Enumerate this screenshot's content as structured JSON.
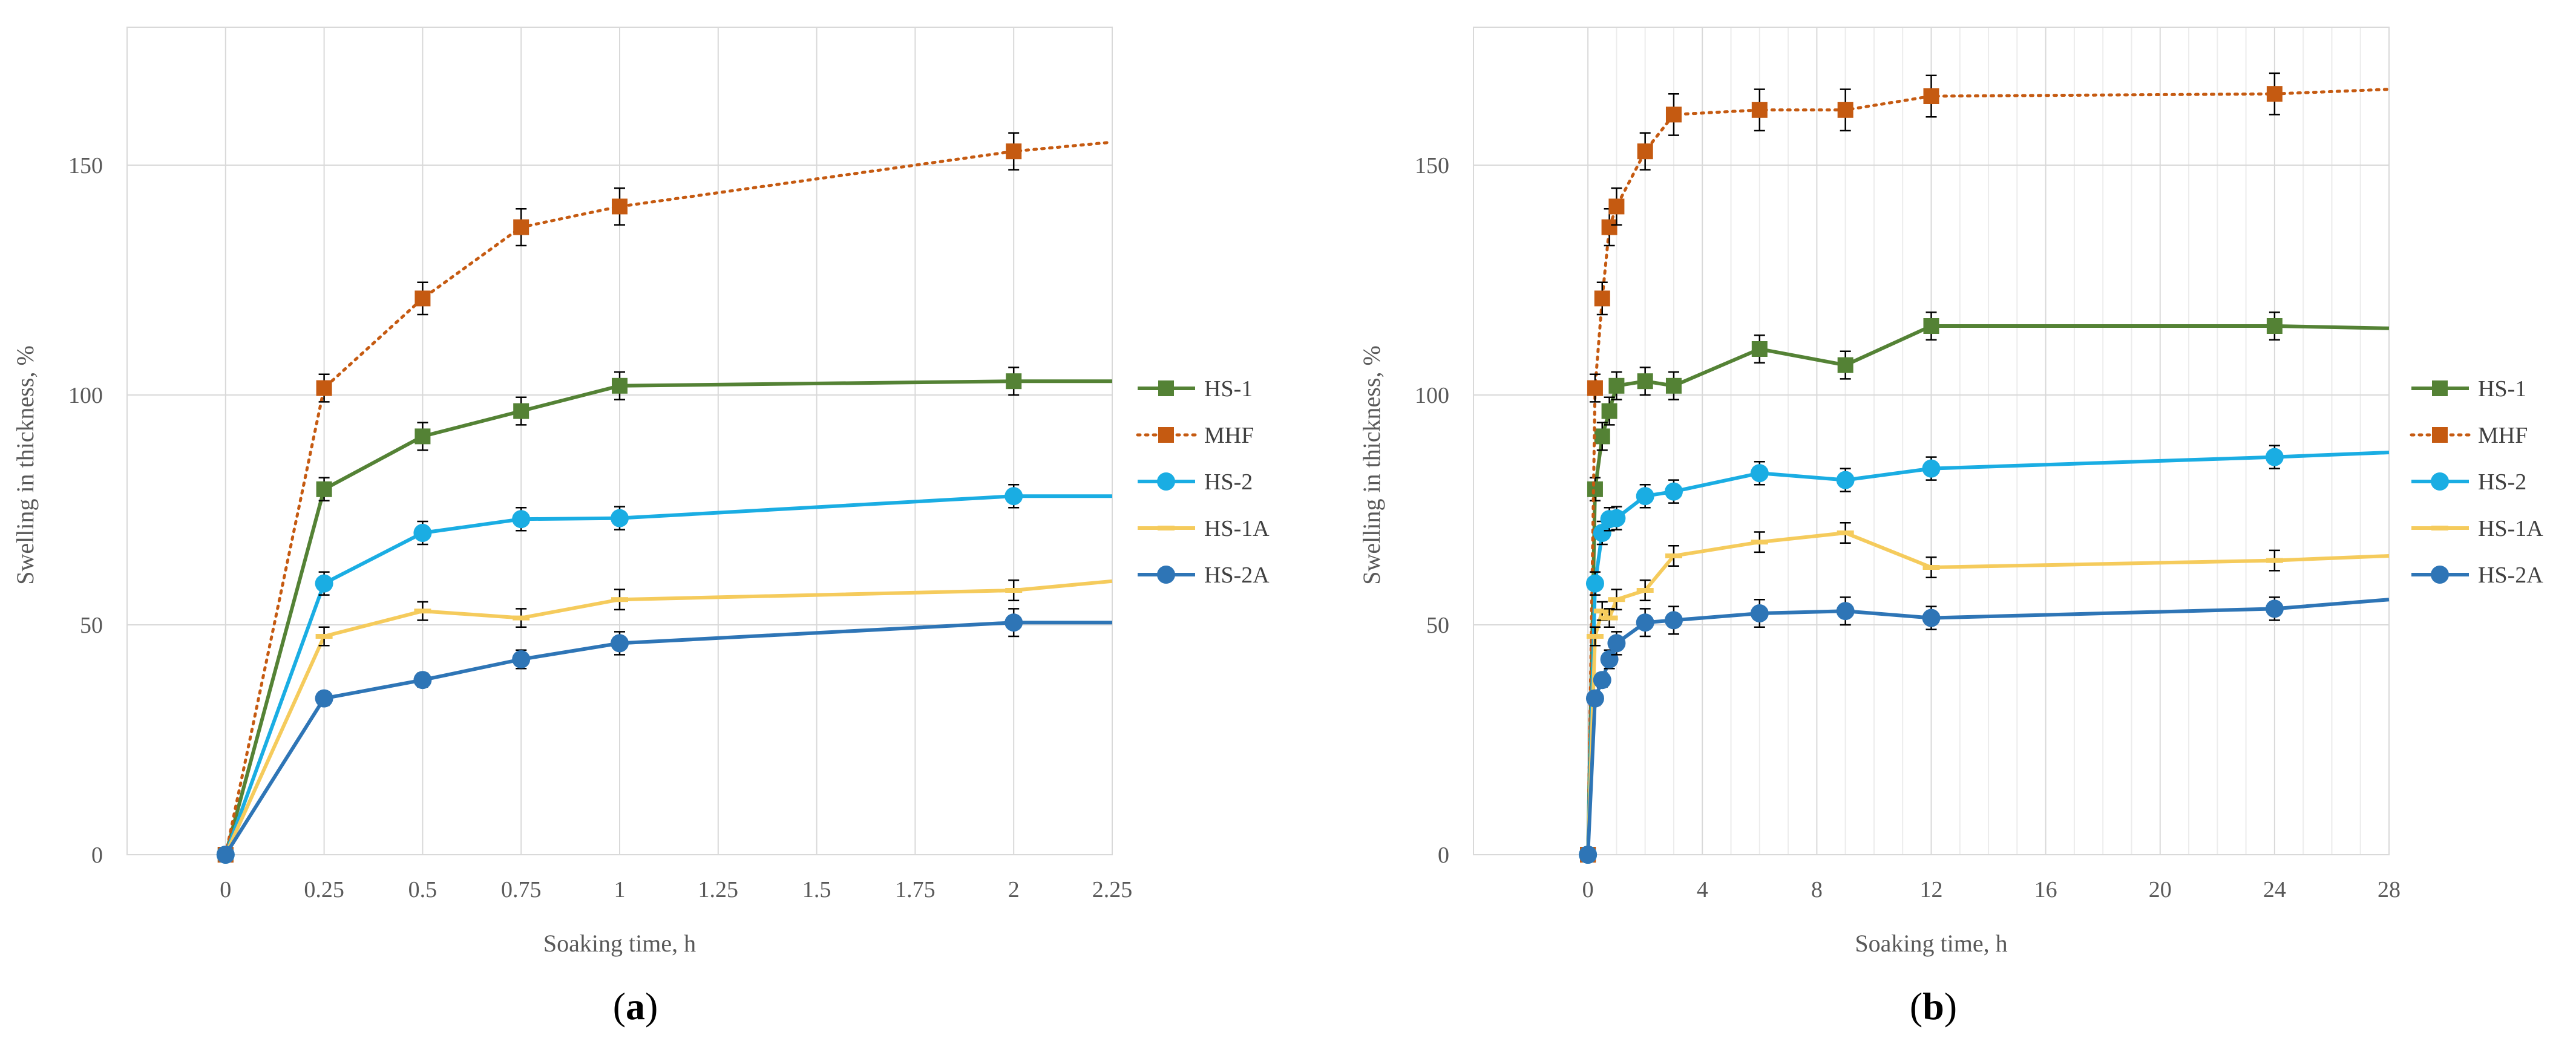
{
  "chart_data": [
    {
      "type": "line",
      "panel_label_open": "(",
      "panel_label_letter": "a",
      "panel_label_close": ")",
      "xlabel": "Soaking time, h",
      "ylabel": "Swelling in thickness, %",
      "x_ticks": [
        "0",
        "0.25",
        "0.5",
        "0.75",
        "1",
        "1.25",
        "1.5",
        "1.75",
        "2",
        "2.25"
      ],
      "x_tick_values": [
        0,
        0.25,
        0.5,
        0.75,
        1,
        1.25,
        1.5,
        1.75,
        2,
        2.25
      ],
      "y_ticks": [
        "0",
        "50",
        "100",
        "150"
      ],
      "y_tick_values": [
        0,
        50,
        100,
        150
      ],
      "xlim": [
        -0.25,
        2.25
      ],
      "ylim": [
        0,
        180
      ],
      "minor_x_grid": false,
      "legend_position": "right",
      "series": [
        {
          "name": "HS-1",
          "color": "#548235",
          "marker": "square",
          "style": "solid",
          "x": [
            0,
            0.25,
            0.5,
            0.75,
            1,
            2,
            2.25
          ],
          "y": [
            0,
            79.5,
            91,
            96.5,
            102,
            103,
            103
          ],
          "err": [
            0,
            2.5,
            3,
            3,
            3,
            3,
            0
          ]
        },
        {
          "name": "MHF",
          "color": "#C55A11",
          "marker": "square",
          "style": "dotted",
          "x": [
            0,
            0.25,
            0.5,
            0.75,
            1,
            2,
            2.25
          ],
          "y": [
            0,
            101.5,
            121,
            136.5,
            141,
            153,
            155
          ],
          "err": [
            0,
            3,
            3.5,
            4,
            4,
            4,
            0
          ]
        },
        {
          "name": "HS-2",
          "color": "#1AADE3",
          "marker": "circle",
          "style": "solid",
          "x": [
            0,
            0.25,
            0.5,
            0.75,
            1,
            2,
            2.25
          ],
          "y": [
            0,
            59,
            70,
            73,
            73.2,
            78,
            78
          ],
          "err": [
            0,
            2.5,
            2.5,
            2.5,
            2.5,
            2.5,
            0
          ]
        },
        {
          "name": "HS-1A",
          "color": "#F5CB5C",
          "marker": "dash",
          "style": "solid",
          "x": [
            0,
            0.25,
            0.5,
            0.75,
            1,
            2,
            2.25
          ],
          "y": [
            0,
            47.5,
            53,
            51.5,
            55.5,
            57.5,
            59.5
          ],
          "err": [
            0,
            2,
            2,
            2,
            2.2,
            2.2,
            0
          ]
        },
        {
          "name": "HS-2A",
          "color": "#2E75B6",
          "marker": "circle",
          "style": "solid",
          "x": [
            0,
            0.25,
            0.5,
            0.75,
            1,
            2,
            2.25
          ],
          "y": [
            0,
            34,
            38,
            42.5,
            46,
            50.5,
            50.5
          ],
          "err": [
            0,
            1.5,
            1.5,
            2,
            2.5,
            3,
            0
          ]
        }
      ]
    },
    {
      "type": "line",
      "panel_label_open": "(",
      "panel_label_letter": "b",
      "panel_label_close": ")",
      "xlabel": "Soaking time, h",
      "ylabel": "Swelling in thickness, %",
      "x_ticks": [
        "0",
        "4",
        "8",
        "12",
        "16",
        "20",
        "24",
        "28"
      ],
      "x_tick_values": [
        0,
        4,
        8,
        12,
        16,
        20,
        24,
        28
      ],
      "y_ticks": [
        "0",
        "50",
        "100",
        "150"
      ],
      "y_tick_values": [
        0,
        50,
        100,
        150
      ],
      "xlim": [
        -4,
        28
      ],
      "ylim": [
        0,
        180
      ],
      "minor_x_grid": true,
      "legend_position": "right",
      "series": [
        {
          "name": "HS-1",
          "color": "#548235",
          "marker": "square",
          "style": "solid",
          "x": [
            0,
            0.25,
            0.5,
            0.75,
            1,
            2,
            3,
            6,
            9,
            12,
            24,
            28
          ],
          "y": [
            0,
            79.5,
            91,
            96.5,
            102,
            103,
            102,
            110,
            106.5,
            115,
            115,
            114.5
          ],
          "err": [
            0,
            2.5,
            3,
            3,
            3,
            3,
            3,
            3,
            3,
            3,
            3,
            0
          ]
        },
        {
          "name": "MHF",
          "color": "#C55A11",
          "marker": "square",
          "style": "dotted",
          "x": [
            0,
            0.25,
            0.5,
            0.75,
            1,
            2,
            3,
            6,
            9,
            12,
            24,
            28
          ],
          "y": [
            0,
            101.5,
            121,
            136.5,
            141,
            153,
            161,
            162,
            162,
            165,
            165.5,
            166.5
          ],
          "err": [
            0,
            3,
            3.5,
            4,
            4,
            4,
            4.5,
            4.5,
            4.5,
            4.5,
            4.5,
            0
          ]
        },
        {
          "name": "HS-2",
          "color": "#1AADE3",
          "marker": "circle",
          "style": "solid",
          "x": [
            0,
            0.25,
            0.5,
            0.75,
            1,
            2,
            3,
            6,
            9,
            12,
            24,
            28
          ],
          "y": [
            0,
            59,
            70,
            73,
            73.2,
            78,
            79,
            83,
            81.5,
            84,
            86.5,
            87.5
          ],
          "err": [
            0,
            2.5,
            2.5,
            2.5,
            2.5,
            2.5,
            2.5,
            2.5,
            2.5,
            2.5,
            2.5,
            0
          ]
        },
        {
          "name": "HS-1A",
          "color": "#F5CB5C",
          "marker": "dash",
          "style": "solid",
          "x": [
            0,
            0.25,
            0.5,
            0.75,
            1,
            2,
            3,
            6,
            9,
            12,
            24,
            28
          ],
          "y": [
            0,
            47.5,
            53,
            51.5,
            55.5,
            57.5,
            65,
            68,
            70,
            62.5,
            64,
            65
          ],
          "err": [
            0,
            2,
            2,
            2,
            2.2,
            2.2,
            2.2,
            2.2,
            2.2,
            2.2,
            2.2,
            0
          ]
        },
        {
          "name": "HS-2A",
          "color": "#2E75B6",
          "marker": "circle",
          "style": "solid",
          "x": [
            0,
            0.25,
            0.5,
            0.75,
            1,
            2,
            3,
            6,
            9,
            12,
            24,
            28
          ],
          "y": [
            0,
            34,
            38,
            42.5,
            46,
            50.5,
            51,
            52.5,
            53,
            51.5,
            53.5,
            55.5
          ],
          "err": [
            0,
            1.5,
            1.5,
            2,
            2.5,
            3,
            3,
            3,
            3,
            2.5,
            2.5,
            0
          ]
        }
      ]
    }
  ]
}
